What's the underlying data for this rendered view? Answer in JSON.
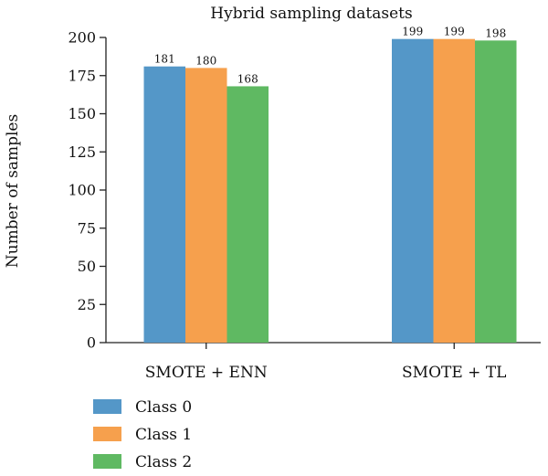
{
  "chart_data": {
    "type": "bar",
    "title": "Hybrid sampling datasets",
    "xlabel": "",
    "ylabel": "Number of samples",
    "categories": [
      "SMOTE + ENN",
      "SMOTE + TL"
    ],
    "series": [
      {
        "name": "Class 0",
        "color": "#5497c8",
        "values": [
          181,
          199
        ]
      },
      {
        "name": "Class 1",
        "color": "#f6a04d",
        "values": [
          180,
          199
        ]
      },
      {
        "name": "Class 2",
        "color": "#5fb962",
        "values": [
          168,
          198
        ]
      }
    ],
    "ylim": [
      0,
      200
    ],
    "yticks": [
      0,
      25,
      50,
      75,
      100,
      125,
      150,
      175,
      200
    ],
    "grid": false,
    "legend": "bottom-left"
  }
}
